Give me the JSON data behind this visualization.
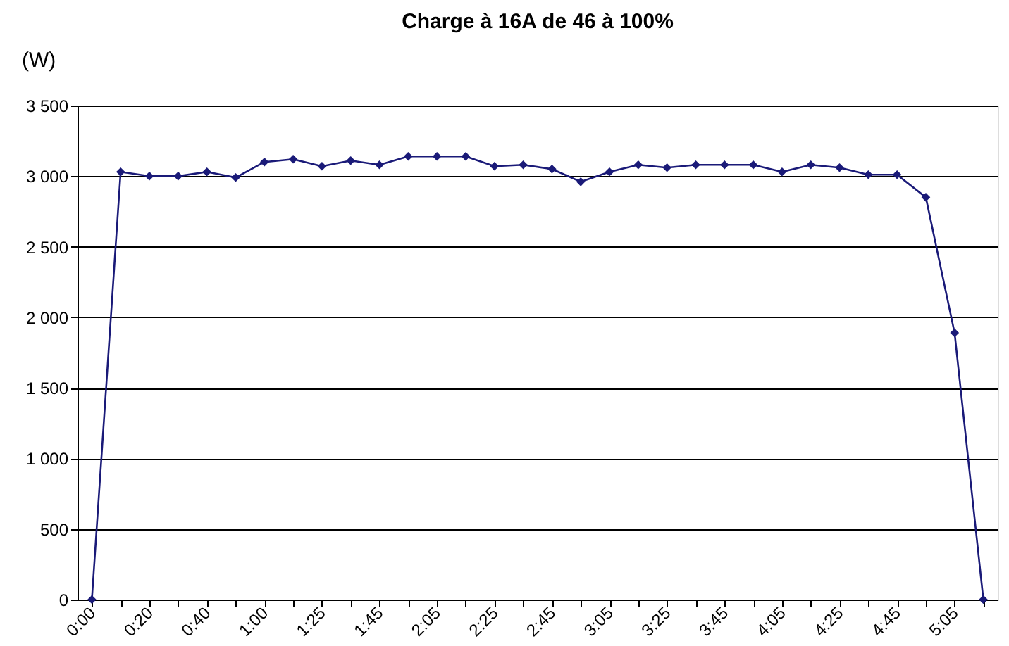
{
  "chart_data": {
    "type": "line",
    "title": "Charge à 16A de 46 à 100%",
    "ylabel": "(W)",
    "categories": [
      "0:00",
      null,
      "0:20",
      null,
      "0:40",
      null,
      "1:00",
      null,
      "1:25",
      null,
      "1:45",
      null,
      "2:05",
      null,
      "2:25",
      null,
      "2:45",
      null,
      "3:05",
      null,
      "3:25",
      null,
      "3:45",
      null,
      "4:05",
      null,
      "4:25",
      null,
      "4:45",
      null,
      "5:05",
      null
    ],
    "series": [
      {
        "color": "#1a1a78",
        "values": [
          0,
          3030,
          3000,
          3000,
          3030,
          2990,
          3100,
          3120,
          3070,
          3110,
          3080,
          3140,
          3140,
          3140,
          3070,
          3080,
          3050,
          2960,
          3030,
          3080,
          3060,
          3080,
          3080,
          3080,
          3030,
          3080,
          3060,
          3010,
          3010,
          2850,
          1890,
          0
        ]
      }
    ],
    "ylim": [
      0,
      3500
    ],
    "yticks": [
      {
        "value": 0,
        "label": "0"
      },
      {
        "value": 500,
        "label": "500"
      },
      {
        "value": 1000,
        "label": "1 000"
      },
      {
        "value": 1500,
        "label": "1 500"
      },
      {
        "value": 2000,
        "label": "2 000"
      },
      {
        "value": 2500,
        "label": "2 500"
      },
      {
        "value": 3000,
        "label": "3 000"
      },
      {
        "value": 3500,
        "label": "3 500"
      }
    ],
    "grid": "y",
    "marker": "diamond",
    "line_style": "solid"
  }
}
